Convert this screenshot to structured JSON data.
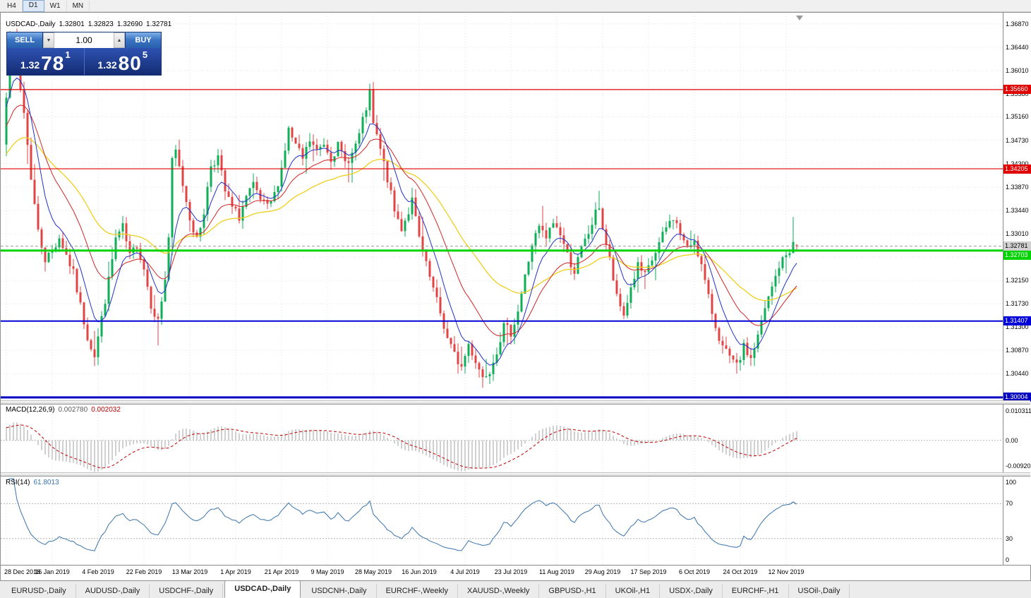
{
  "toolbar": {
    "timeframes": [
      {
        "label": "H4",
        "active": false
      },
      {
        "label": "D1",
        "active": true
      },
      {
        "label": "W1",
        "active": false
      },
      {
        "label": "MN",
        "active": false
      }
    ]
  },
  "chart_header": {
    "symbol_title": "USDCAD-,Daily",
    "open": "1.32801",
    "high": "1.32823",
    "low": "1.32690",
    "close": "1.32781"
  },
  "trade_panel": {
    "sell_label": "SELL",
    "buy_label": "BUY",
    "volume": "1.00",
    "bid_main": "1.32",
    "bid_big": "78",
    "bid_sup": "1",
    "ask_main": "1.32",
    "ask_big": "80",
    "ask_sup": "5"
  },
  "icons": {
    "volume_down": "▼",
    "volume_up": "▲",
    "chart_shift": "▼"
  },
  "price_axis": {
    "labels": [
      "1.36870",
      "1.36440",
      "1.36010",
      "1.35580",
      "1.35160",
      "1.34730",
      "1.34300",
      "1.33870",
      "1.33440",
      "1.33010",
      "1.32580",
      "1.32150",
      "1.31730",
      "1.31300",
      "1.30870",
      "1.30440"
    ]
  },
  "time_axis": {
    "labels": [
      "28 Dec 2018",
      "16 Jan 2019",
      "4 Feb 2019",
      "22 Feb 2019",
      "13 Mar 2019",
      "1 Apr 2019",
      "21 Apr 2019",
      "9 May 2019",
      "28 May 2019",
      "16 Jun 2019",
      "4 Jul 2019",
      "23 Jul 2019",
      "11 Aug 2019",
      "29 Aug 2019",
      "17 Sep 2019",
      "6 Oct 2019",
      "24 Oct 2019",
      "12 Nov 2019"
    ]
  },
  "levels": [
    {
      "label": "1.35660",
      "price": 1.3566,
      "color": "#e00000",
      "thickness": 1.2,
      "text_color": "#fff"
    },
    {
      "label": "1.34205",
      "price": 1.34205,
      "color": "#e00000",
      "thickness": 1.2,
      "text_color": "#fff"
    },
    {
      "label": "1.32703",
      "price": 1.32703,
      "color": "#00d300",
      "thickness": 3,
      "text_color": "#fff"
    },
    {
      "label": "1.31407",
      "price": 1.31407,
      "color": "#0000d9",
      "thickness": 2,
      "text_color": "#fff"
    },
    {
      "label": "1.30004",
      "price": 1.30004,
      "color": "#0000c0",
      "thickness": 3,
      "text_color": "#fff"
    }
  ],
  "bid_line": {
    "label": "1.32781",
    "price": 1.32781,
    "line_color": "#9c9c9c",
    "tag_bg": "#d0d0d0",
    "tag_text": "#000"
  },
  "macd_panel": {
    "label": "MACD(12,26,9)",
    "value_main": "0.002780",
    "value_signal": "0.002032",
    "axis_top": "0.010311",
    "axis_zero": "0.00",
    "axis_bottom": "-0.009201",
    "scale_max": 0.010311,
    "scale_min": -0.009201,
    "histogram_color": "#c4c4c4",
    "signal_color": "#c00000"
  },
  "rsi_panel": {
    "label": "RSI(14)",
    "value": "61.8013",
    "axis": [
      "100",
      "70",
      "30",
      "0"
    ],
    "level_high": 70,
    "level_low": 30,
    "line_color": "#3973ac"
  },
  "tabs": [
    {
      "label": "EURUSD-,Daily",
      "active": false
    },
    {
      "label": "AUDUSD-,Daily",
      "active": false
    },
    {
      "label": "USDCHF-,Daily",
      "active": false
    },
    {
      "label": "USDCAD-,Daily",
      "active": true
    },
    {
      "label": "USDCNH-,Daily",
      "active": false
    },
    {
      "label": "EURCHF-,Weekly",
      "active": false
    },
    {
      "label": "XAUUSD-,Weekly",
      "active": false
    },
    {
      "label": "GBPUSD-,H1",
      "active": false
    },
    {
      "label": "UKOil-,H1",
      "active": false
    },
    {
      "label": "USDX-,Daily",
      "active": false
    },
    {
      "label": "EURCHF-,H1",
      "active": false
    },
    {
      "label": "USOil-,Daily",
      "active": false
    }
  ],
  "chart_data": {
    "type": "candlestick",
    "symbol": "USDCAD",
    "timeframe": "Daily",
    "candle_count": 225,
    "candles_per_date_label": 13,
    "price_max_view": 1.3706,
    "price_min_view": 1.2995,
    "up_color": "#0fae57",
    "down_color": "#e04444",
    "grid_color": "#e2e2e2",
    "ma_periods": {
      "fast": 8,
      "mid": 20,
      "slow": 45
    },
    "ma_colors": {
      "fast": "#2031c9",
      "mid": "#cf2525",
      "slow": "#efcf1c"
    },
    "macd": {
      "fast": 12,
      "slow": 26,
      "signal": 9
    },
    "rsi_period": 14,
    "first_candle_open": 1.3465,
    "last_candle": {
      "open": 1.32801,
      "high": 1.32823,
      "low": 1.3269,
      "close": 1.32781
    },
    "noise_seed": 7,
    "noise_amp": 0.0009,
    "wick_amp": 0.0016,
    "pre_trend_start": 1.334,
    "pre_trend_len": 34,
    "spikes": [
      {
        "i": 0,
        "low": 1.3452
      },
      {
        "i": 2,
        "high": 1.3663
      },
      {
        "i": 25,
        "low": 1.3058
      },
      {
        "i": 43,
        "low": 1.3096
      },
      {
        "i": 103,
        "high": 1.3564
      },
      {
        "i": 135,
        "low": 1.3018
      },
      {
        "i": 168,
        "high": 1.338
      },
      {
        "i": 207,
        "low": 1.3044
      },
      {
        "i": 223,
        "high": 1.3332
      }
    ],
    "close_anchors": [
      [
        0,
        1.356
      ],
      [
        1,
        1.3645
      ],
      [
        2,
        1.3655
      ],
      [
        3,
        1.3605
      ],
      [
        5,
        1.3525
      ],
      [
        7,
        1.3405
      ],
      [
        9,
        1.3305
      ],
      [
        11,
        1.3255
      ],
      [
        13,
        1.3268
      ],
      [
        15,
        1.3295
      ],
      [
        17,
        1.3262
      ],
      [
        19,
        1.3228
      ],
      [
        21,
        1.3168
      ],
      [
        23,
        1.3112
      ],
      [
        25,
        1.3078
      ],
      [
        27,
        1.3145
      ],
      [
        29,
        1.3215
      ],
      [
        31,
        1.3292
      ],
      [
        33,
        1.3312
      ],
      [
        35,
        1.3258
      ],
      [
        37,
        1.3282
      ],
      [
        39,
        1.3238
      ],
      [
        41,
        1.3172
      ],
      [
        43,
        1.314
      ],
      [
        45,
        1.3218
      ],
      [
        46,
        1.3295
      ],
      [
        47,
        1.3432
      ],
      [
        48,
        1.3452
      ],
      [
        50,
        1.3392
      ],
      [
        52,
        1.3332
      ],
      [
        54,
        1.3288
      ],
      [
        56,
        1.3342
      ],
      [
        58,
        1.3428
      ],
      [
        60,
        1.3442
      ],
      [
        62,
        1.3378
      ],
      [
        64,
        1.3348
      ],
      [
        66,
        1.3332
      ],
      [
        68,
        1.3368
      ],
      [
        70,
        1.3388
      ],
      [
        72,
        1.3362
      ],
      [
        74,
        1.3348
      ],
      [
        76,
        1.3372
      ],
      [
        78,
        1.3422
      ],
      [
        80,
        1.3492
      ],
      [
        82,
        1.3462
      ],
      [
        84,
        1.3438
      ],
      [
        86,
        1.3472
      ],
      [
        88,
        1.3452
      ],
      [
        90,
        1.3468
      ],
      [
        92,
        1.3442
      ],
      [
        94,
        1.3462
      ],
      [
        96,
        1.3432
      ],
      [
        98,
        1.3448
      ],
      [
        100,
        1.3482
      ],
      [
        102,
        1.3532
      ],
      [
        103,
        1.3558
      ],
      [
        104,
        1.3502
      ],
      [
        106,
        1.3455
      ],
      [
        108,
        1.3402
      ],
      [
        110,
        1.3342
      ],
      [
        112,
        1.3312
      ],
      [
        114,
        1.3342
      ],
      [
        115,
        1.3362
      ],
      [
        117,
        1.3292
      ],
      [
        119,
        1.3242
      ],
      [
        121,
        1.3198
      ],
      [
        123,
        1.3155
      ],
      [
        125,
        1.3108
      ],
      [
        127,
        1.3078
      ],
      [
        129,
        1.3056
      ],
      [
        131,
        1.3098
      ],
      [
        133,
        1.3068
      ],
      [
        135,
        1.3038
      ],
      [
        137,
        1.3052
      ],
      [
        139,
        1.3088
      ],
      [
        141,
        1.313
      ],
      [
        143,
        1.312
      ],
      [
        145,
        1.316
      ],
      [
        147,
        1.3222
      ],
      [
        149,
        1.3282
      ],
      [
        151,
        1.3312
      ],
      [
        153,
        1.3292
      ],
      [
        155,
        1.3322
      ],
      [
        157,
        1.3302
      ],
      [
        159,
        1.3262
      ],
      [
        161,
        1.3232
      ],
      [
        163,
        1.3272
      ],
      [
        165,
        1.3302
      ],
      [
        167,
        1.3338
      ],
      [
        168,
        1.3352
      ],
      [
        169,
        1.3312
      ],
      [
        171,
        1.3252
      ],
      [
        173,
        1.3182
      ],
      [
        175,
        1.3152
      ],
      [
        177,
        1.3202
      ],
      [
        179,
        1.3242
      ],
      [
        181,
        1.3222
      ],
      [
        183,
        1.3252
      ],
      [
        185,
        1.3282
      ],
      [
        187,
        1.3312
      ],
      [
        189,
        1.3332
      ],
      [
        191,
        1.3302
      ],
      [
        193,
        1.3272
      ],
      [
        195,
        1.3292
      ],
      [
        197,
        1.3242
      ],
      [
        199,
        1.3182
      ],
      [
        201,
        1.3132
      ],
      [
        203,
        1.3092
      ],
      [
        205,
        1.3072
      ],
      [
        207,
        1.3056
      ],
      [
        209,
        1.3092
      ],
      [
        211,
        1.3072
      ],
      [
        213,
        1.3112
      ],
      [
        215,
        1.3162
      ],
      [
        217,
        1.3202
      ],
      [
        219,
        1.3242
      ],
      [
        221,
        1.3262
      ],
      [
        222,
        1.3272
      ],
      [
        223,
        1.3282
      ],
      [
        224,
        1.3278
      ]
    ]
  }
}
